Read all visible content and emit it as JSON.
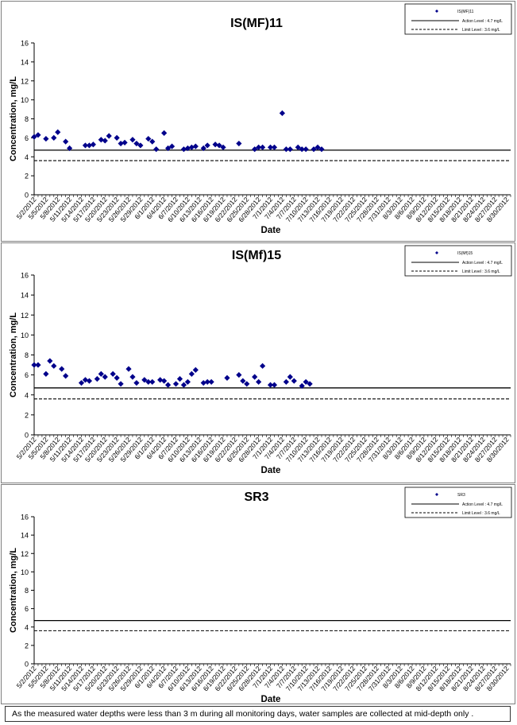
{
  "chart_data": [
    {
      "type": "scatter",
      "title": "IS(MF)11",
      "xlabel": "Date",
      "ylabel": "Concentration, mg/L",
      "ylim": [
        0,
        16
      ],
      "yticks": [
        "0",
        "2",
        "4",
        "6",
        "8",
        "10",
        "12",
        "14",
        "16"
      ],
      "x_ticks": [
        "5/2/2012",
        "5/5/2012",
        "5/8/2012",
        "5/11/2012",
        "5/14/2012",
        "5/17/2012",
        "5/20/2012",
        "5/23/2012",
        "5/26/2012",
        "5/29/2012",
        "6/1/2012",
        "6/4/2012",
        "6/7/2012",
        "6/10/2012",
        "6/13/2012",
        "6/16/2012",
        "6/19/2012",
        "6/22/2012",
        "6/25/2012",
        "6/28/2012",
        "7/1/2012",
        "7/4/2012",
        "7/7/2012",
        "7/10/2012",
        "7/13/2012",
        "7/16/2012",
        "7/19/2012",
        "7/22/2012",
        "7/25/2012",
        "7/28/2012",
        "7/31/2012",
        "8/3/2012",
        "8/6/2012",
        "8/9/2012",
        "8/12/2012",
        "8/15/2012",
        "8/18/2012",
        "8/21/2012",
        "8/24/2012",
        "8/27/2012",
        "8/30/2012"
      ],
      "x_start": "2012-05-02",
      "x_end": "2012-08-31",
      "legend": {
        "series_label": "IS(MF)11",
        "action_label": "Action Level : 4.7 mg/L",
        "limit_label": "Limit Level : 3.6 mg/L",
        "position": "top-right"
      },
      "action_level": 4.7,
      "limit_level": 3.6,
      "series": [
        {
          "name": "IS(MF)11",
          "color": "#00008b",
          "points": [
            [
              "2012-05-02",
              6.1
            ],
            [
              "2012-05-03",
              6.3
            ],
            [
              "2012-05-05",
              5.9
            ],
            [
              "2012-05-07",
              6.0
            ],
            [
              "2012-05-08",
              6.6
            ],
            [
              "2012-05-10",
              5.6
            ],
            [
              "2012-05-11",
              4.9
            ],
            [
              "2012-05-15",
              5.2
            ],
            [
              "2012-05-16",
              5.2
            ],
            [
              "2012-05-17",
              5.3
            ],
            [
              "2012-05-19",
              5.8
            ],
            [
              "2012-05-20",
              5.7
            ],
            [
              "2012-05-21",
              6.2
            ],
            [
              "2012-05-23",
              6.0
            ],
            [
              "2012-05-24",
              5.4
            ],
            [
              "2012-05-25",
              5.5
            ],
            [
              "2012-05-27",
              5.8
            ],
            [
              "2012-05-28",
              5.4
            ],
            [
              "2012-05-29",
              5.2
            ],
            [
              "2012-05-31",
              5.9
            ],
            [
              "2012-06-01",
              5.6
            ],
            [
              "2012-06-02",
              4.8
            ],
            [
              "2012-06-04",
              6.5
            ],
            [
              "2012-06-05",
              4.9
            ],
            [
              "2012-06-06",
              5.1
            ],
            [
              "2012-06-09",
              4.8
            ],
            [
              "2012-06-10",
              4.9
            ],
            [
              "2012-06-11",
              5.0
            ],
            [
              "2012-06-12",
              5.1
            ],
            [
              "2012-06-14",
              4.9
            ],
            [
              "2012-06-15",
              5.2
            ],
            [
              "2012-06-17",
              5.3
            ],
            [
              "2012-06-18",
              5.2
            ],
            [
              "2012-06-19",
              5.0
            ],
            [
              "2012-06-23",
              5.4
            ],
            [
              "2012-06-27",
              4.8
            ],
            [
              "2012-06-28",
              5.0
            ],
            [
              "2012-06-29",
              5.0
            ],
            [
              "2012-07-01",
              5.0
            ],
            [
              "2012-07-02",
              5.0
            ],
            [
              "2012-07-04",
              8.6
            ],
            [
              "2012-07-05",
              4.8
            ],
            [
              "2012-07-06",
              4.8
            ],
            [
              "2012-07-08",
              5.0
            ],
            [
              "2012-07-09",
              4.8
            ],
            [
              "2012-07-10",
              4.8
            ],
            [
              "2012-07-12",
              4.8
            ],
            [
              "2012-07-13",
              5.0
            ],
            [
              "2012-07-14",
              4.8
            ]
          ]
        }
      ]
    },
    {
      "type": "scatter",
      "title": "IS(Mf)15",
      "xlabel": "Date",
      "ylabel": "Concentration, mg/L",
      "ylim": [
        0,
        16
      ],
      "yticks": [
        "0",
        "2",
        "4",
        "6",
        "8",
        "10",
        "12",
        "14",
        "16"
      ],
      "x_ticks": [
        "5/2/2012",
        "5/5/2012",
        "5/8/2012",
        "5/11/2012",
        "5/14/2012",
        "5/17/2012",
        "5/20/2012",
        "5/23/2012",
        "5/26/2012",
        "5/29/2012",
        "6/1/2012",
        "6/4/2012",
        "6/7/2012",
        "6/10/2012",
        "6/13/2012",
        "6/16/2012",
        "6/19/2012",
        "6/22/2012",
        "6/25/2012",
        "6/28/2012",
        "7/1/2012",
        "7/4/2012",
        "7/7/2012",
        "7/10/2012",
        "7/13/2012",
        "7/16/2012",
        "7/19/2012",
        "7/22/2012",
        "7/25/2012",
        "7/28/2012",
        "7/31/2012",
        "8/3/2012",
        "8/6/2012",
        "8/9/2012",
        "8/12/2012",
        "8/15/2012",
        "8/18/2012",
        "8/21/2012",
        "8/24/2012",
        "8/27/2012",
        "8/30/2012"
      ],
      "x_start": "2012-05-02",
      "x_end": "2012-08-31",
      "legend": {
        "series_label": "IS(Mf)15",
        "action_label": "Action Level : 4.7 mg/L",
        "limit_label": "Limit Level : 3.6 mg/L",
        "position": "top-right"
      },
      "action_level": 4.7,
      "limit_level": 3.6,
      "series": [
        {
          "name": "IS(Mf)15",
          "color": "#00008b",
          "points": [
            [
              "2012-05-02",
              7.0
            ],
            [
              "2012-05-03",
              7.0
            ],
            [
              "2012-05-05",
              6.1
            ],
            [
              "2012-05-06",
              7.4
            ],
            [
              "2012-05-07",
              6.9
            ],
            [
              "2012-05-09",
              6.6
            ],
            [
              "2012-05-10",
              5.9
            ],
            [
              "2012-05-14",
              5.2
            ],
            [
              "2012-05-15",
              5.5
            ],
            [
              "2012-05-16",
              5.4
            ],
            [
              "2012-05-18",
              5.6
            ],
            [
              "2012-05-19",
              6.1
            ],
            [
              "2012-05-20",
              5.8
            ],
            [
              "2012-05-22",
              6.1
            ],
            [
              "2012-05-23",
              5.7
            ],
            [
              "2012-05-24",
              5.1
            ],
            [
              "2012-05-26",
              6.6
            ],
            [
              "2012-05-27",
              5.8
            ],
            [
              "2012-05-28",
              5.2
            ],
            [
              "2012-05-30",
              5.5
            ],
            [
              "2012-05-31",
              5.3
            ],
            [
              "2012-06-01",
              5.3
            ],
            [
              "2012-06-03",
              5.5
            ],
            [
              "2012-06-04",
              5.4
            ],
            [
              "2012-06-05",
              5.0
            ],
            [
              "2012-06-07",
              5.1
            ],
            [
              "2012-06-08",
              5.6
            ],
            [
              "2012-06-09",
              5.0
            ],
            [
              "2012-06-10",
              5.3
            ],
            [
              "2012-06-11",
              6.1
            ],
            [
              "2012-06-12",
              6.5
            ],
            [
              "2012-06-14",
              5.2
            ],
            [
              "2012-06-15",
              5.3
            ],
            [
              "2012-06-16",
              5.3
            ],
            [
              "2012-06-20",
              5.7
            ],
            [
              "2012-06-23",
              6.0
            ],
            [
              "2012-06-24",
              5.4
            ],
            [
              "2012-06-25",
              5.1
            ],
            [
              "2012-06-27",
              5.8
            ],
            [
              "2012-06-28",
              5.3
            ],
            [
              "2012-06-29",
              6.9
            ],
            [
              "2012-07-01",
              5.0
            ],
            [
              "2012-07-02",
              5.0
            ],
            [
              "2012-07-05",
              5.3
            ],
            [
              "2012-07-06",
              5.8
            ],
            [
              "2012-07-07",
              5.4
            ],
            [
              "2012-07-09",
              4.9
            ],
            [
              "2012-07-10",
              5.3
            ],
            [
              "2012-07-11",
              5.1
            ]
          ]
        }
      ]
    },
    {
      "type": "scatter",
      "title": "SR3",
      "xlabel": "Date",
      "ylabel": "Concentration, mg/L",
      "ylim": [
        0,
        16
      ],
      "yticks": [
        "0",
        "2",
        "4",
        "6",
        "8",
        "10",
        "12",
        "14",
        "16"
      ],
      "x_ticks": [
        "5/2/2012",
        "5/5/2012",
        "5/8/2012",
        "5/11/2012",
        "5/14/2012",
        "5/17/2012",
        "5/20/2012",
        "5/23/2012",
        "5/26/2012",
        "5/29/2012",
        "6/1/2012",
        "6/4/2012",
        "6/7/2012",
        "6/10/2012",
        "6/13/2012",
        "6/16/2012",
        "6/19/2012",
        "6/22/2012",
        "6/25/2012",
        "6/28/2012",
        "7/1/2012",
        "7/4/2012",
        "7/7/2012",
        "7/10/2012",
        "7/13/2012",
        "7/16/2012",
        "7/19/2012",
        "7/22/2012",
        "7/25/2012",
        "7/28/2012",
        "7/31/2012",
        "8/3/2012",
        "8/6/2012",
        "8/9/2012",
        "8/12/2012",
        "8/15/2012",
        "8/18/2012",
        "8/21/2012",
        "8/24/2012",
        "8/27/2012",
        "8/30/2012"
      ],
      "x_start": "2012-05-02",
      "x_end": "2012-08-31",
      "legend": {
        "series_label": "SR3",
        "action_label": "Action Level : 4.7 mg/L",
        "limit_label": "Limit Level : 3.6 mg/L",
        "position": "top-right"
      },
      "action_level": 4.7,
      "limit_level": 3.6,
      "series": [
        {
          "name": "SR3",
          "color": "#00008b",
          "points": []
        }
      ]
    }
  ],
  "footnote": "As the measured water depths were less than 3 m during all monitoring days, water samples are collected at mid-depth only ."
}
